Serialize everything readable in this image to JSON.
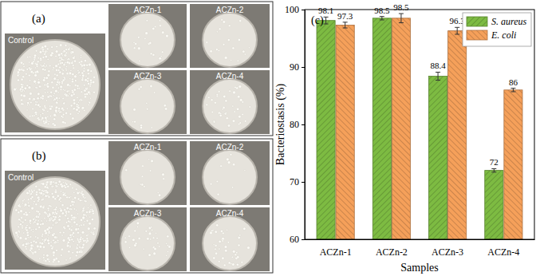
{
  "chart_data": {
    "type": "bar",
    "panel_label": "(c)",
    "x_label": "Samples",
    "y_label": "Bacteriostasis (%)",
    "categories": [
      "ACZn-1",
      "ACZn-2",
      "ACZn-3",
      "ACZn-4"
    ],
    "series": [
      {
        "name": "S. aureus",
        "color": "#7dbb42",
        "values": [
          98.1,
          98.5,
          88.4,
          72
        ],
        "errors": [
          0.6,
          0.3,
          0.7,
          0.3
        ]
      },
      {
        "name": "E. coli",
        "color": "#f5a05a",
        "values": [
          97.3,
          98.5,
          96.3,
          86
        ],
        "errors": [
          0.5,
          0.8,
          0.6,
          0.3
        ]
      }
    ],
    "ylim": [
      60,
      100
    ],
    "yticks": [
      60,
      70,
      80,
      90,
      100
    ],
    "grid": false,
    "legend": "top-right",
    "data_labels": true
  },
  "photo_panels": [
    {
      "label": "(a)",
      "dishes": [
        "Control",
        "ACZn-1",
        "ACZn-2",
        "ACZn-3",
        "ACZn-4"
      ]
    },
    {
      "label": "(b)",
      "dishes": [
        "Control",
        "ACZn-1",
        "ACZn-2",
        "ACZn-3",
        "ACZn-4"
      ]
    }
  ]
}
